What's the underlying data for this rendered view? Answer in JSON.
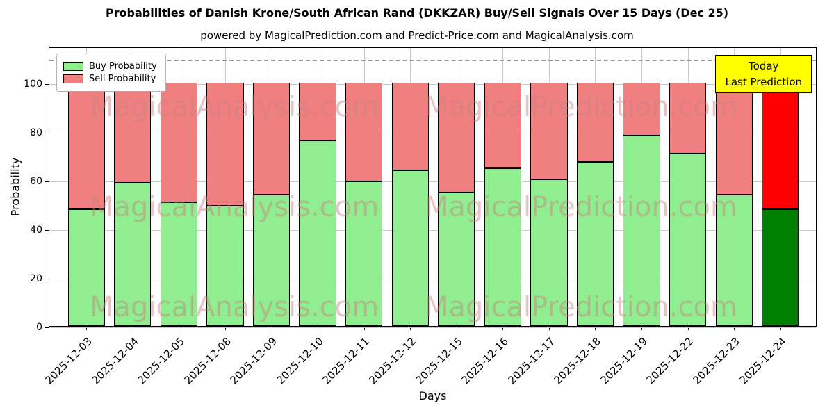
{
  "figure": {
    "title": "Probabilities of Danish Krone/South African Rand (DKKZAR) Buy/Sell Signals Over 15 Days (Dec 25)",
    "subtitle": "powered by MagicalPrediction.com and Predict-Price.com and MagicalAnalysis.com"
  },
  "chart_data": {
    "type": "bar",
    "stacked": true,
    "title": "Probabilities of Danish Krone/South African Rand (DKKZAR) Buy/Sell Signals Over 15 Days (Dec 25)",
    "xlabel": "Days",
    "ylabel": "Probability",
    "ylim": [
      0,
      115
    ],
    "yticks": [
      0,
      20,
      40,
      60,
      80,
      100
    ],
    "grid": true,
    "dashed_guide_y": 110,
    "legend_position": "top-left",
    "categories": [
      "2025-12-03",
      "2025-12-04",
      "2025-12-05",
      "2025-12-08",
      "2025-12-09",
      "2025-12-10",
      "2025-12-11",
      "2025-12-12",
      "2025-12-15",
      "2025-12-16",
      "2025-12-17",
      "2025-12-18",
      "2025-12-19",
      "2025-12-22",
      "2025-12-23",
      "2025-12-24"
    ],
    "series": [
      {
        "name": "Buy Probability",
        "color": "#90EE90",
        "values": [
          48,
          59,
          51,
          49.5,
          54,
          76.5,
          59.5,
          64,
          55,
          65,
          60.5,
          67.5,
          78.5,
          71,
          54,
          48
        ]
      },
      {
        "name": "Sell Probability",
        "color": "#F08080",
        "values": [
          52,
          41,
          49,
          50.5,
          46,
          23.5,
          40.5,
          36,
          45,
          35,
          39.5,
          32.5,
          21.5,
          29,
          46,
          52
        ]
      }
    ],
    "today_bar": {
      "category": "2025-12-24",
      "index": 15,
      "buy_color": "#008000",
      "sell_color": "#FF0000"
    }
  },
  "annotation": {
    "line1": "Today",
    "line2": "Last Prediction",
    "bg_color": "#FFFF00"
  },
  "watermark": {
    "left_text": "MagicalAnalysis.com",
    "right_text": "MagicalPrediction.com",
    "color": "#C9807E"
  }
}
